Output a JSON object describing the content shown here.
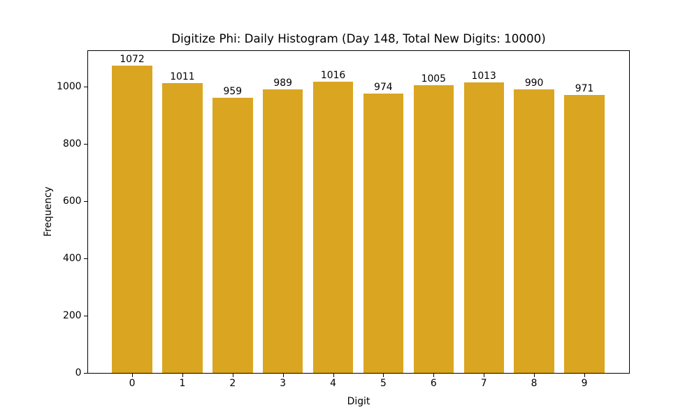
{
  "chart_data": {
    "type": "bar",
    "title": "Digitize Phi: Daily Histogram (Day 148, Total New Digits: 10000)",
    "xlabel": "Digit",
    "ylabel": "Frequency",
    "categories": [
      "0",
      "1",
      "2",
      "3",
      "4",
      "5",
      "6",
      "7",
      "8",
      "9"
    ],
    "values": [
      1072,
      1011,
      959,
      989,
      1016,
      974,
      1005,
      1013,
      990,
      971
    ],
    "value_labels": [
      "1072",
      "1011",
      "959",
      "989",
      "1016",
      "974",
      "1005",
      "1013",
      "990",
      "971"
    ],
    "yticks": [
      0,
      200,
      400,
      600,
      800,
      1000
    ],
    "ylim": [
      0,
      1125.6
    ],
    "bar_color": "#DAA520",
    "grid": false,
    "legend": null
  }
}
